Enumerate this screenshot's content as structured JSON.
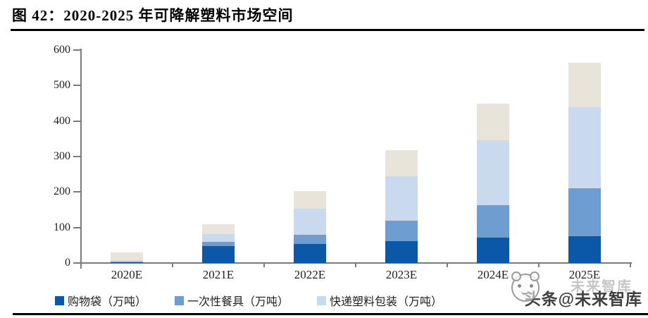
{
  "header": {
    "title": "图 42：2020-2025 年可降解塑料市场空间"
  },
  "watermark": {
    "text": "头条@未来智库",
    "ghost_text": "未来智库",
    "logo_icon": "panda-face-icon"
  },
  "chart_data": {
    "type": "bar",
    "stacked": true,
    "title": "图 42：2020-2025 年可降解塑料市场空间",
    "categories": [
      "2020E",
      "2021E",
      "2022E",
      "2023E",
      "2024E",
      "2025E"
    ],
    "series": [
      {
        "name": "购物袋（万吨）",
        "color": "#0B57A8",
        "legend_visible": true,
        "values": [
          2,
          47,
          54,
          62,
          71,
          76
        ]
      },
      {
        "name": "一次性餐具（万吨）",
        "color": "#6D9DD1",
        "legend_visible": true,
        "values": [
          1,
          12,
          26,
          57,
          91,
          134
        ]
      },
      {
        "name": "快递塑料包装（万吨）",
        "color": "#C9DAEE",
        "legend_visible": true,
        "values": [
          5,
          23,
          73,
          126,
          183,
          230
        ]
      },
      {
        "name": "",
        "color": "#E8E4DA",
        "legend_visible": false,
        "values": [
          22,
          28,
          50,
          73,
          105,
          125
        ]
      }
    ],
    "totals": [
      30,
      110,
      203,
      318,
      450,
      565
    ],
    "xlabel": "",
    "ylabel": "",
    "ylim": [
      0,
      600
    ],
    "yticks": [
      0,
      100,
      200,
      300,
      400,
      500,
      600
    ],
    "grid": false,
    "legend_position": "bottom"
  }
}
